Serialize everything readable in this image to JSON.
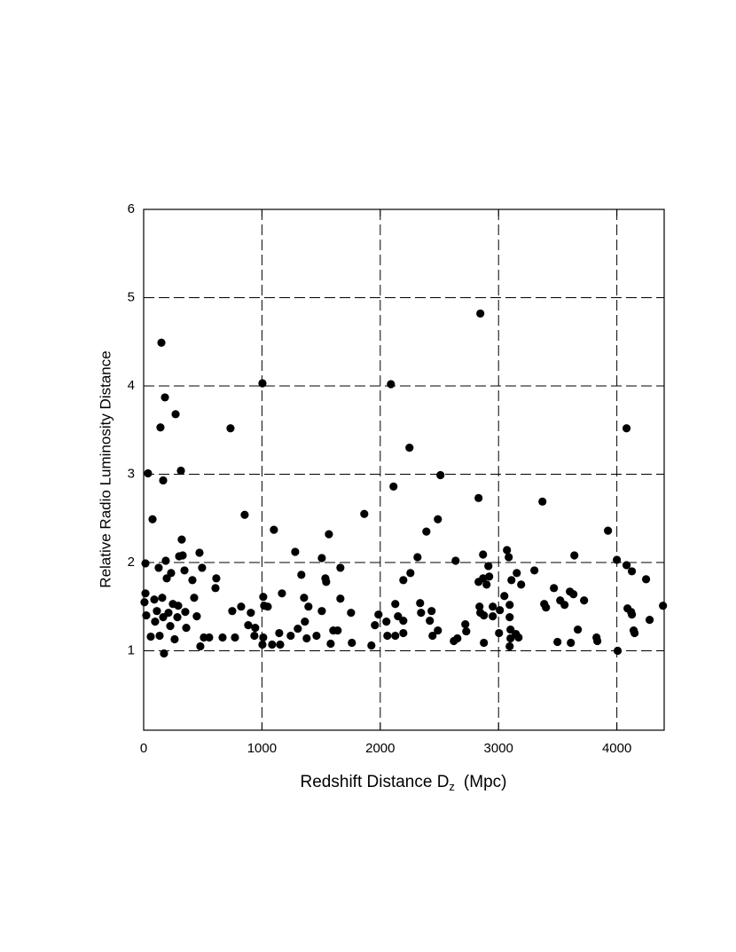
{
  "chart_data": {
    "type": "scatter",
    "x_label": "Redshift Distance D",
    "x_label_sub": "z",
    "x_label_unit": "(Mpc)",
    "y_label": "Relative Radio Luminosity Distance",
    "xlim": [
      0,
      4400
    ],
    "ylim": [
      0.1,
      6
    ],
    "xticks": [
      0,
      1000,
      2000,
      3000,
      4000
    ],
    "yticks": [
      1,
      2,
      3,
      4,
      5,
      6
    ],
    "xgrid": [
      1000,
      2000,
      3000,
      4000
    ],
    "ygrid": [
      1,
      2,
      3,
      4,
      5
    ],
    "color": "#000000",
    "x": [
      15,
      15,
      7,
      22,
      37,
      60,
      75,
      90,
      97,
      112,
      127,
      135,
      142,
      150,
      157,
      165,
      172,
      165,
      180,
      187,
      195,
      210,
      225,
      232,
      247,
      262,
      270,
      285,
      292,
      300,
      315,
      322,
      330,
      345,
      352,
      360,
      412,
      427,
      449,
      472,
      494,
      509,
      479,
      554,
      614,
      607,
      667,
      734,
      749,
      772,
      824,
      854,
      884,
      906,
      936,
      943,
      1004,
      1011,
      1004,
      1019,
      1049,
      1011,
      1101,
      1086,
      1154,
      1169,
      1146,
      1243,
      1281,
      1303,
      1333,
      1356,
      1363,
      1378,
      1393,
      1461,
      1506,
      1506,
      1536,
      1543,
      1566,
      1581,
      1603,
      1640,
      1663,
      1663,
      1753,
      1760,
      1865,
      1925,
      1985,
      1955,
      2052,
      2060,
      2090,
      2112,
      2127,
      2127,
      2150,
      2195,
      2195,
      2195,
      2247,
      2255,
      2315,
      2337,
      2345,
      2390,
      2419,
      2434,
      2442,
      2487,
      2487,
      2509,
      2637,
      2622,
      2652,
      2719,
      2727,
      2831,
      2831,
      2839,
      2846,
      2846,
      2869,
      2869,
      2876,
      2876,
      2899,
      2914,
      2921,
      2951,
      2951,
      3004,
      3011,
      3049,
      3071,
      3086,
      3094,
      3094,
      3101,
      3094,
      3109,
      3101,
      3146,
      3154,
      3169,
      3191,
      3303,
      3371,
      3386,
      3401,
      3468,
      3498,
      3521,
      3558,
      3603,
      3611,
      3633,
      3641,
      3670,
      3723,
      3828,
      3835,
      3925,
      4000,
      4007,
      4082,
      4082,
      4090,
      4120,
      4127,
      4127,
      4142,
      4150,
      4247,
      4277,
      4390
    ],
    "y": [
      1.99,
      1.65,
      1.55,
      1.4,
      3.01,
      1.16,
      2.49,
      1.58,
      1.33,
      1.45,
      1.94,
      1.17,
      3.53,
      4.49,
      1.6,
      1.38,
      0.97,
      2.93,
      3.87,
      2.02,
      1.82,
      1.43,
      1.28,
      1.88,
      1.53,
      1.13,
      3.68,
      1.38,
      1.51,
      2.07,
      3.04,
      2.26,
      2.08,
      1.91,
      1.44,
      1.26,
      1.8,
      1.6,
      1.39,
      2.11,
      1.94,
      1.15,
      1.05,
      1.15,
      1.82,
      1.71,
      1.15,
      3.52,
      1.45,
      1.15,
      1.5,
      2.54,
      1.29,
      1.43,
      1.17,
      1.26,
      4.03,
      1.61,
      1.07,
      1.51,
      1.5,
      1.15,
      2.37,
      1.07,
      1.07,
      1.65,
      1.2,
      1.17,
      2.12,
      1.25,
      1.86,
      1.6,
      1.33,
      1.14,
      1.5,
      1.17,
      2.05,
      1.45,
      1.82,
      1.78,
      2.32,
      1.08,
      1.23,
      1.23,
      1.94,
      1.59,
      1.43,
      1.09,
      2.55,
      1.06,
      1.41,
      1.29,
      1.33,
      1.17,
      4.02,
      2.86,
      1.53,
      1.17,
      1.39,
      1.34,
      1.2,
      1.8,
      3.3,
      1.88,
      2.06,
      1.54,
      1.43,
      2.35,
      1.34,
      1.45,
      1.17,
      1.23,
      2.49,
      2.99,
      2.02,
      1.11,
      1.14,
      1.3,
      1.22,
      2.73,
      1.78,
      1.5,
      4.82,
      1.43,
      1.82,
      2.09,
      1.09,
      1.4,
      1.75,
      1.96,
      1.84,
      1.5,
      1.39,
      1.2,
      1.46,
      1.62,
      2.14,
      2.06,
      1.52,
      1.38,
      1.24,
      1.05,
      1.8,
      1.14,
      1.19,
      1.88,
      1.15,
      1.75,
      1.91,
      2.69,
      1.53,
      1.49,
      1.71,
      1.1,
      1.57,
      1.52,
      1.67,
      1.09,
      1.64,
      2.08,
      1.24,
      1.57,
      1.15,
      1.11,
      2.36,
      2.03,
      1.0,
      3.52,
      1.97,
      1.48,
      1.44,
      1.41,
      1.9,
      1.23,
      1.2,
      1.81,
      1.35,
      1.51
    ]
  }
}
